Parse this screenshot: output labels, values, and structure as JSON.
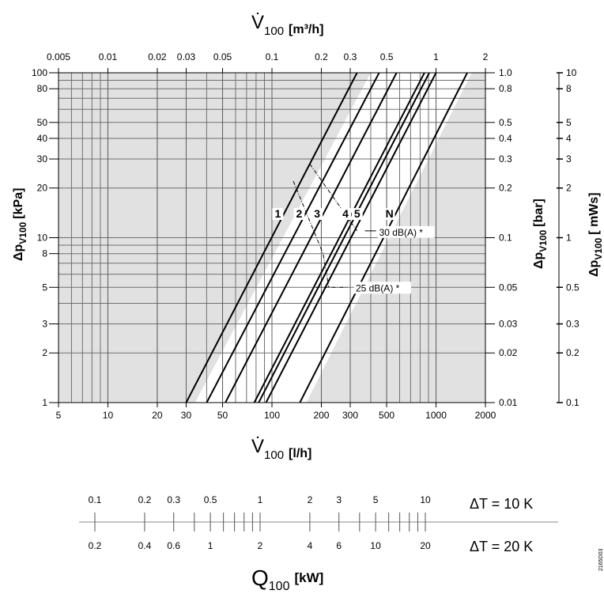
{
  "chart_data": {
    "type": "line",
    "log_log": true,
    "title": "",
    "top_axis": {
      "label_main": "V̇",
      "label_sub": "100",
      "unit": "[m³/h]",
      "range": [
        0.005,
        2
      ],
      "ticks": [
        "0.005",
        "0.01",
        "0.02",
        "0.03",
        "0.05",
        "0.1",
        "0.2",
        "0.3",
        "0.5",
        "1",
        "2"
      ]
    },
    "bottom_axis": {
      "label_main": "V̇",
      "label_sub": "100",
      "unit": "[l/h]",
      "range": [
        5,
        2000
      ],
      "ticks": [
        "5",
        "10",
        "20",
        "30",
        "50",
        "100",
        "200",
        "300",
        "500",
        "1000",
        "2000"
      ]
    },
    "left_axis": {
      "label_delta": "Δp",
      "label_sub": "V100",
      "unit": "[kPa]",
      "range": [
        1,
        100
      ],
      "ticks": [
        "1",
        "2",
        "3",
        "5",
        "8",
        "10",
        "20",
        "30",
        "40",
        "50",
        "80",
        "100"
      ]
    },
    "right_axis_bar": {
      "label_delta": "Δp",
      "label_sub": "V100",
      "unit": "[bar]",
      "range": [
        0.01,
        1
      ],
      "ticks": [
        "0.01",
        "0.02",
        "0.03",
        "0.05",
        "0.1",
        "0.2",
        "0.3",
        "0.4",
        "0.5",
        "0.8",
        "1.0"
      ]
    },
    "right_axis_mws": {
      "label_delta": "Δp",
      "label_sub": "V100",
      "unit": "[ mWs]",
      "range": [
        0.1,
        10
      ],
      "ticks": [
        "0.1",
        "0.2",
        "0.3",
        "0.5",
        "1",
        "2",
        "3",
        "4",
        "5",
        "8",
        "10"
      ]
    },
    "series": [
      {
        "name": "1",
        "x": [
          30,
          330
        ],
        "y": [
          1,
          100
        ]
      },
      {
        "name": "2",
        "x": [
          40,
          450
        ],
        "y": [
          1,
          100
        ]
      },
      {
        "name": "3",
        "x": [
          52,
          575
        ],
        "y": [
          1,
          100
        ]
      },
      {
        "name": "4",
        "x": [
          78,
          850
        ],
        "y": [
          1,
          100
        ]
      },
      {
        "name": "",
        "x": [
          83,
          910
        ],
        "y": [
          1,
          100
        ]
      },
      {
        "name": "5",
        "x": [
          92,
          1000
        ],
        "y": [
          1,
          100
        ]
      },
      {
        "name": "N",
        "x": [
          148,
          1550
        ],
        "y": [
          1,
          100
        ]
      }
    ],
    "noise_limits": [
      {
        "label": "30 dB(A) *",
        "x": [
          170,
          330
        ],
        "y": [
          28,
          11
        ]
      },
      {
        "label": "25 dB(A) *",
        "x": [
          135,
          205,
          222
        ],
        "y": [
          22,
          8,
          5
        ]
      }
    ],
    "extra_curve": {
      "x": [
        185,
        222,
        290
      ],
      "y": [
        5,
        5,
        5
      ]
    },
    "shading": {
      "left_edge": {
        "x": [
          34,
          400
        ],
        "y": [
          1,
          100
        ]
      },
      "right_edge": {
        "x": [
          162,
          1650
        ],
        "y": [
          1,
          100
        ]
      }
    },
    "grid": true
  },
  "heat_scale": {
    "dt10_label": "ΔT = 10 K",
    "dt20_label": "ΔT = 20 K",
    "dt10_ticks": [
      "0.1",
      "0.2",
      "0.3",
      "0.5",
      "1",
      "2",
      "3",
      "5",
      "10"
    ],
    "dt20_ticks": [
      "0.2",
      "0.4",
      "0.6",
      "1",
      "2",
      "4",
      "6",
      "10",
      "20"
    ],
    "q_main": "Q",
    "q_sub": "100",
    "q_unit": "[kW]"
  },
  "drawing_id": "2165D03"
}
